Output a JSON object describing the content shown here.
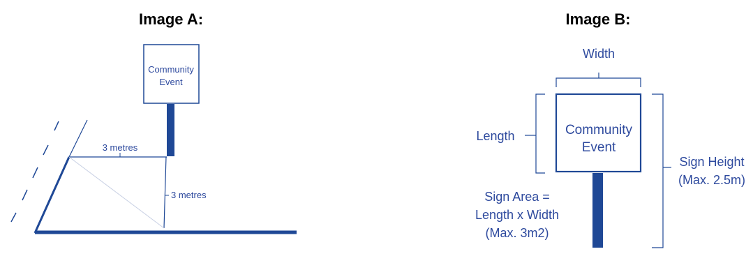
{
  "colors": {
    "primary_blue": "#1f4896",
    "label_blue": "#2e4a9e",
    "heading": "#000000"
  },
  "image_a": {
    "heading": "Image A:",
    "sign_text_line1": "Community",
    "sign_text_line2": "Event",
    "horizontal_distance_label": "3 metres",
    "vertical_distance_label": "3 metres"
  },
  "image_b": {
    "heading": "Image B:",
    "width_label": "Width",
    "length_label": "Length",
    "sign_text_line1": "Community",
    "sign_text_line2": "Event",
    "sign_height_line1": "Sign Height",
    "sign_height_line2": "(Max. 2.5m)",
    "sign_area_line1": "Sign Area =",
    "sign_area_line2": "Length x Width",
    "sign_area_line3": "(Max. 3m2)"
  }
}
